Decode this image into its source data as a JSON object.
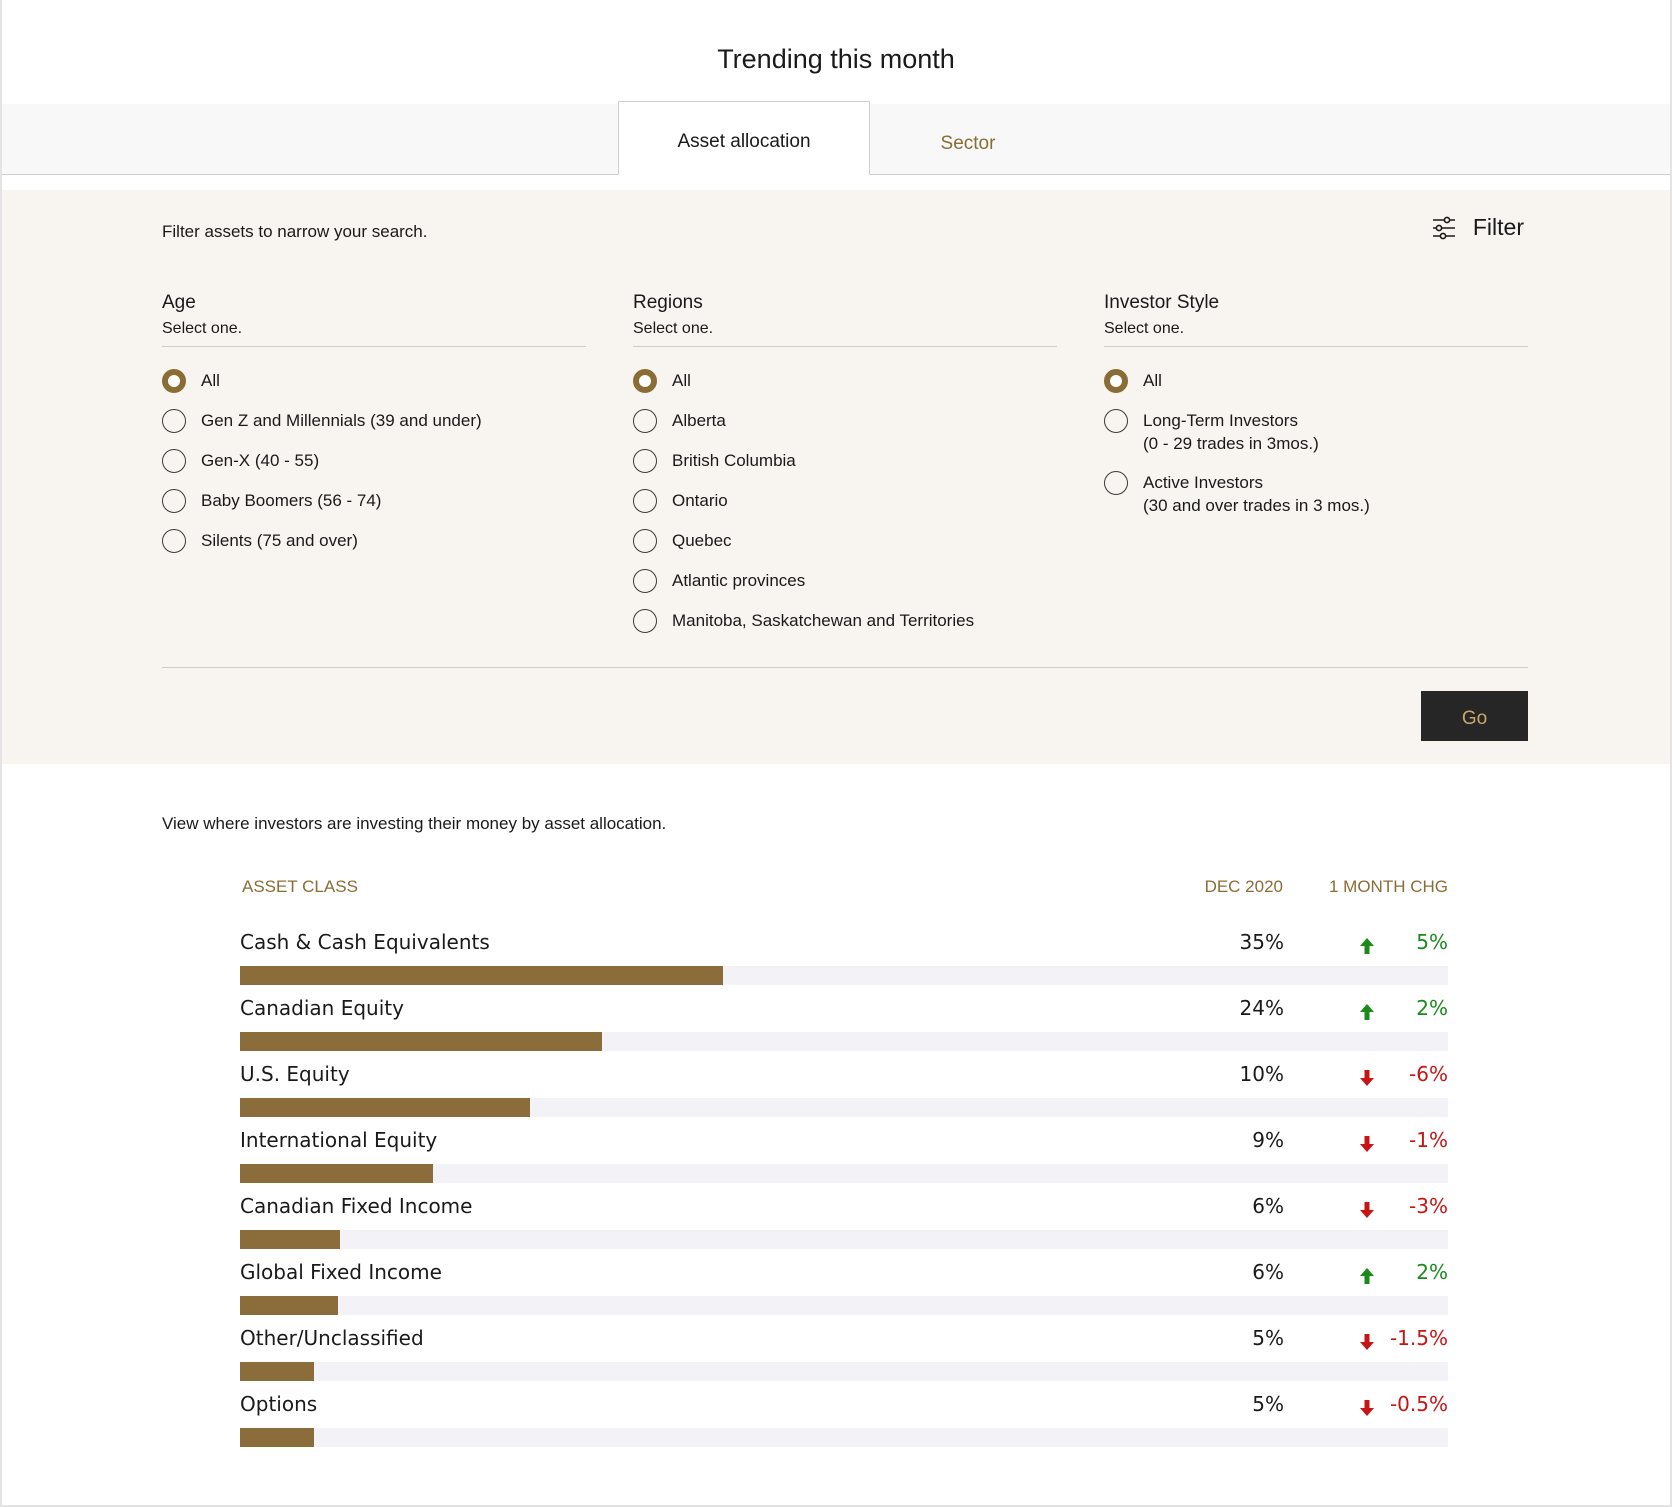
{
  "page": {
    "title": "Trending this month"
  },
  "tabs": [
    {
      "label": "Asset allocation",
      "active": true
    },
    {
      "label": "Sector",
      "active": false
    }
  ],
  "filter": {
    "intro": "Filter assets to narrow your search.",
    "toggle_label": "Filter",
    "toggle_icon": "sliders-icon",
    "groups": [
      {
        "title": "Age",
        "hint": "Select one.",
        "options": [
          {
            "label": "All",
            "checked": true
          },
          {
            "label": "Gen Z and Millennials (39 and under)",
            "checked": false
          },
          {
            "label": "Gen-X (40 - 55)",
            "checked": false
          },
          {
            "label": "Baby Boomers (56 - 74)",
            "checked": false
          },
          {
            "label": "Silents (75 and over)",
            "checked": false
          }
        ]
      },
      {
        "title": "Regions",
        "hint": "Select one.",
        "options": [
          {
            "label": "All",
            "checked": true
          },
          {
            "label": "Alberta",
            "checked": false
          },
          {
            "label": "British Columbia",
            "checked": false
          },
          {
            "label": "Ontario",
            "checked": false
          },
          {
            "label": "Quebec",
            "checked": false
          },
          {
            "label": "Atlantic provinces",
            "checked": false
          },
          {
            "label": "Manitoba, Saskatchewan and Territories",
            "checked": false
          }
        ]
      },
      {
        "title": "Investor Style",
        "hint": "Select one.",
        "options": [
          {
            "label": "All",
            "sub": "",
            "checked": true
          },
          {
            "label": "Long-Term Investors",
            "sub": "(0 - 29 trades in 3mos.)",
            "checked": false
          },
          {
            "label": "Active Investors",
            "sub": "(30 and over trades in 3 mos.)",
            "checked": false
          }
        ]
      }
    ],
    "go_label": "Go"
  },
  "results": {
    "intro": "View where investors are investing their money by asset allocation.",
    "headers": {
      "asset_class": "ASSET CLASS",
      "period": "DEC 2020",
      "change": "1 MONTH CHG"
    },
    "rows": [
      {
        "label": "Cash & Cash Equivalents",
        "value": "35%",
        "change": "5%",
        "direction": "up",
        "fill": 0.4
      },
      {
        "label": "Canadian Equity",
        "value": "24%",
        "change": "2%",
        "direction": "up",
        "fill": 0.3
      },
      {
        "label": "U.S. Equity",
        "value": "10%",
        "change": "-6%",
        "direction": "down",
        "fill": 0.24
      },
      {
        "label": "International Equity",
        "value": "9%",
        "change": "-1%",
        "direction": "down",
        "fill": 0.16
      },
      {
        "label": "Canadian Fixed Income",
        "value": "6%",
        "change": "-3%",
        "direction": "down",
        "fill": 0.083
      },
      {
        "label": "Global Fixed Income",
        "value": "6%",
        "change": "2%",
        "direction": "up",
        "fill": 0.081
      },
      {
        "label": "Other/Unclassified",
        "value": "5%",
        "change": "-1.5%",
        "direction": "down",
        "fill": 0.061
      },
      {
        "label": "Options",
        "value": "5%",
        "change": "-0.5%",
        "direction": "down",
        "fill": 0.061
      }
    ]
  },
  "colors": {
    "accent": "#8a6d35",
    "bar": "#8a6d3b",
    "positive": "#1a8a1a",
    "negative": "#c81414",
    "go_button_bg": "#262626",
    "go_button_text": "#c8a86a",
    "panel_bg": "#f8f4ef"
  }
}
